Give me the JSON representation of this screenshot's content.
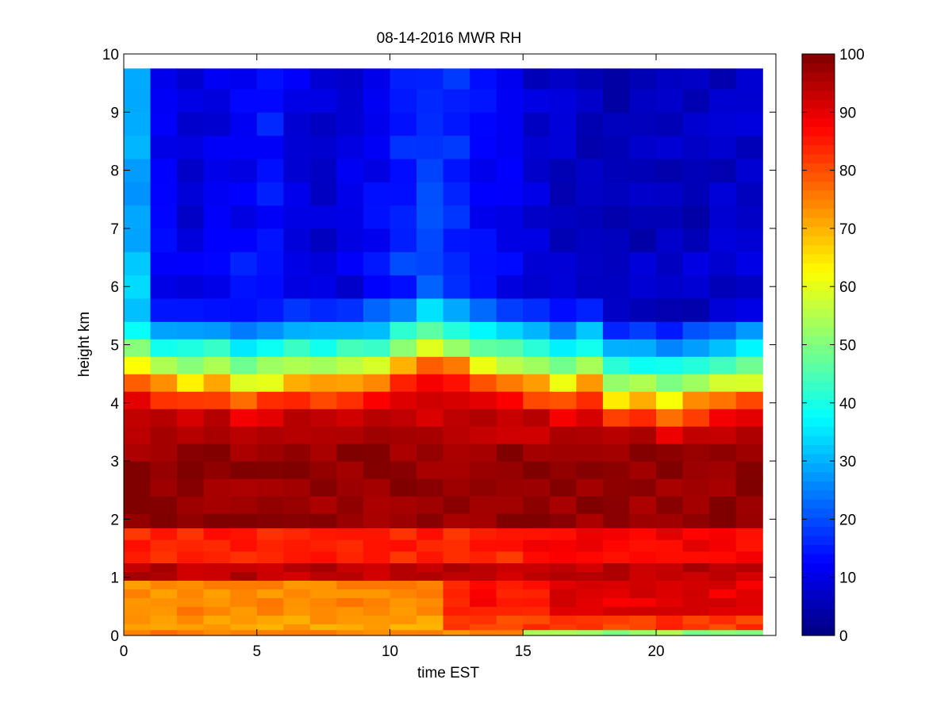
{
  "chart_data": {
    "type": "heatmap",
    "title": "08-14-2016 MWR RH",
    "xlabel": "time EST",
    "ylabel": "height km",
    "xlim": [
      0,
      24.5
    ],
    "ylim": [
      0,
      10
    ],
    "x_ticks": [
      "0",
      "5",
      "10",
      "15",
      "20"
    ],
    "y_ticks": [
      "0",
      "1",
      "2",
      "3",
      "4",
      "5",
      "6",
      "7",
      "8",
      "9",
      "10"
    ],
    "colorbar": {
      "range": [
        0,
        100
      ],
      "ticks": [
        "0",
        "10",
        "20",
        "30",
        "40",
        "50",
        "60",
        "70",
        "80",
        "90",
        "100"
      ],
      "colormap": "jet"
    },
    "x": [
      0.5,
      1.5,
      2.5,
      3.5,
      4.5,
      5.5,
      6.5,
      7.5,
      8.5,
      9.5,
      10.5,
      11.5,
      12.5,
      13.5,
      14.5,
      15.5,
      16.5,
      17.5,
      18.5,
      19.5,
      20.5,
      21.5,
      22.5,
      23.5
    ],
    "y_levels_km": [
      0,
      0.1,
      0.2,
      0.35,
      0.5,
      0.65,
      0.8,
      0.95,
      1.1,
      1.25,
      1.45,
      1.65,
      1.85,
      2.1,
      2.4,
      2.7,
      3.0,
      3.3,
      3.6,
      3.9,
      4.2,
      4.5,
      4.8,
      5.1,
      5.4,
      5.8,
      6.2,
      6.6,
      7.0,
      7.4,
      7.8,
      8.2,
      8.6,
      9.0,
      9.4,
      9.75
    ],
    "grid": false,
    "colorbar_position": "right"
  }
}
